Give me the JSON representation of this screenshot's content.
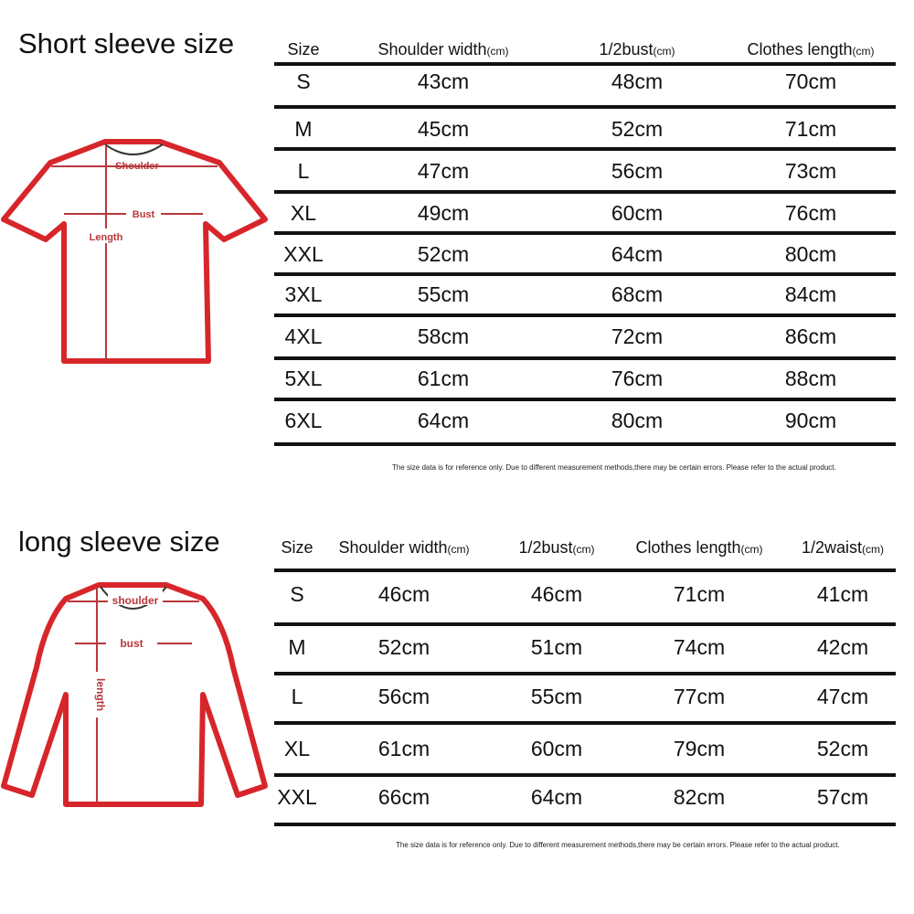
{
  "short_sleeve": {
    "title": "Short sleeve size",
    "headers": [
      {
        "label": "Size",
        "unit": ""
      },
      {
        "label": "Shoulder width",
        "unit": "(cm)"
      },
      {
        "label": "1/2bust",
        "unit": "(cm)"
      },
      {
        "label": "Clothes length",
        "unit": "(cm)"
      }
    ],
    "rows": [
      [
        "S",
        "43cm",
        "48cm",
        "70cm"
      ],
      [
        "M",
        "45cm",
        "52cm",
        "71cm"
      ],
      [
        "L",
        "47cm",
        "56cm",
        "73cm"
      ],
      [
        "XL",
        "49cm",
        "60cm",
        "76cm"
      ],
      [
        "XXL",
        "52cm",
        "64cm",
        "80cm"
      ],
      [
        "3XL",
        "55cm",
        "68cm",
        "84cm"
      ],
      [
        "4XL",
        "58cm",
        "72cm",
        "86cm"
      ],
      [
        "5XL",
        "61cm",
        "76cm",
        "88cm"
      ],
      [
        "6XL",
        "64cm",
        "80cm",
        "90cm"
      ]
    ],
    "diagram_labels": {
      "shoulder": "Shoulder",
      "bust": "Bust",
      "length": "Length"
    },
    "note": "The size data is for reference only. Due to different measurement methods,there may be certain errors. Please refer to the actual product."
  },
  "long_sleeve": {
    "title": "long sleeve size",
    "headers": [
      {
        "label": "Size",
        "unit": ""
      },
      {
        "label": "Shoulder width",
        "unit": "(cm)"
      },
      {
        "label": "1/2bust",
        "unit": "(cm)"
      },
      {
        "label": "Clothes length",
        "unit": "(cm)"
      },
      {
        "label": "1/2waist",
        "unit": "(cm)"
      }
    ],
    "rows": [
      [
        "S",
        "46cm",
        "46cm",
        "71cm",
        "41cm"
      ],
      [
        "M",
        "52cm",
        "51cm",
        "74cm",
        "42cm"
      ],
      [
        "L",
        "56cm",
        "55cm",
        "77cm",
        "47cm"
      ],
      [
        "XL",
        "61cm",
        "60cm",
        "79cm",
        "52cm"
      ],
      [
        "XXL",
        "66cm",
        "64cm",
        "82cm",
        "57cm"
      ]
    ],
    "diagram_labels": {
      "shoulder": "shoulder",
      "bust": "bust",
      "length": "length"
    },
    "note": "The size data is for reference only. Due to different measurement methods,there may be certain errors. Please refer to the actual product."
  },
  "colors": {
    "outline_red": "#d7262b",
    "rule": "#111111"
  }
}
